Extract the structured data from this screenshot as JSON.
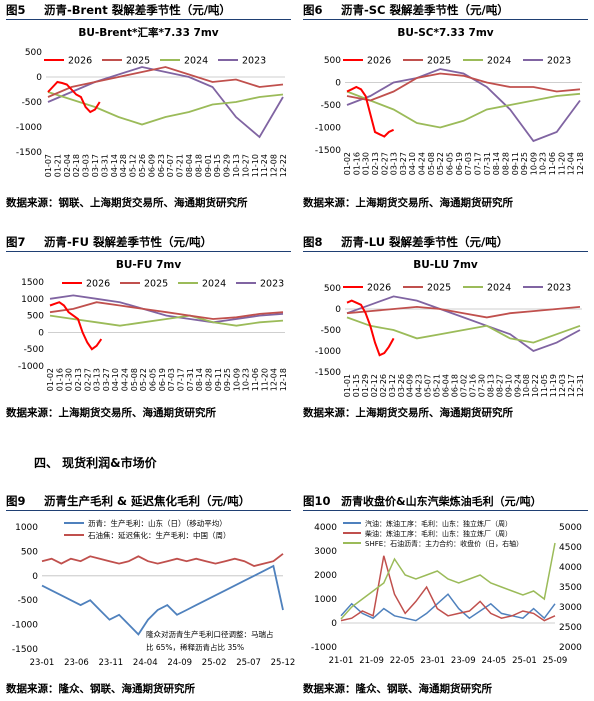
{
  "figures": [
    {
      "num": "图5",
      "title": "沥青-Brent 裂解差季节性（元/吨）"
    },
    {
      "num": "图6",
      "title": "沥青-SC 裂解差季节性（元/吨）"
    },
    {
      "num": "图7",
      "title": "沥青-FU 裂解差季节性（元/吨）"
    },
    {
      "num": "图8",
      "title": "沥青-LU 裂解差季节性（元/吨）"
    },
    {
      "num": "图9",
      "title": "沥青生产毛利 & 延迟焦化毛利（元/吨）"
    },
    {
      "num": "图10",
      "title": "沥青收盘价&山东汽柴炼油毛利（元/吨）"
    }
  ],
  "sources": {
    "s5": "数据来源：钢联、上海期货交易所、海通期货研究所",
    "s6": "数据来源：上海期货交易所、海通期货研究所",
    "s7": "数据来源：上海期货交易所、海通期货研究所",
    "s9": "数据来源：隆众、钢联、海通期货研究所",
    "s10": "数据来源：隆众、钢联、海通期货研究所"
  },
  "section_heading": "四、    现货利润&市场价",
  "colors": {
    "s2026": "#ff0000",
    "s2025": "#c0504d",
    "s2024": "#9bbb59",
    "s2023": "#8064a2",
    "blue": "#4f81bd",
    "red": "#c0504d",
    "green": "#9bbb59"
  },
  "chart_data": [
    {
      "id": "fig5",
      "type": "line",
      "title": "BU-Brent*汇率*7.33 7mv",
      "ylim": [
        -1500,
        500
      ],
      "yticks": [
        "500",
        "0",
        "-500",
        "-1000",
        "-1500"
      ],
      "xticks": [
        "01-07",
        "01-21",
        "02-04",
        "02-18",
        "03-03",
        "03-17",
        "03-31",
        "04-14",
        "04-28",
        "05-12",
        "05-26",
        "06-09",
        "06-23",
        "07-07",
        "07-21",
        "08-04",
        "08-18",
        "09-01",
        "09-15",
        "09-29",
        "10-13",
        "10-27",
        "11-10",
        "11-24",
        "12-08",
        "12-22"
      ],
      "x_tick_labels_printed": [
        "01-07",
        "01-21",
        "02-04",
        "02-18",
        "03-03",
        "03-17",
        "03-31",
        "04-14",
        "04-28",
        "05-12",
        "05-26",
        "06-09",
        "06-23",
        "07-07",
        "07-21",
        "08-04",
        "08-18",
        "09-01",
        "09-15",
        "09-29",
        "10-13",
        "10-27",
        "11-10",
        "11-24",
        "12-08",
        "12-22"
      ],
      "legend": [
        "2026",
        "2025",
        "2024",
        "2023"
      ],
      "series": [
        {
          "name": "2026",
          "x": [
            0,
            1,
            2,
            3,
            4,
            5,
            6,
            7,
            8,
            9,
            10,
            11
          ],
          "values": [
            -300,
            -200,
            -100,
            -120,
            -150,
            -250,
            -350,
            -400,
            -600,
            -700,
            -650,
            -500
          ]
        },
        {
          "name": "2025",
          "x": [
            0,
            5,
            10,
            15,
            20,
            25,
            30,
            35,
            40,
            45,
            50
          ],
          "values": [
            -400,
            -200,
            -100,
            0,
            100,
            200,
            50,
            -100,
            -50,
            -200,
            -150
          ]
        },
        {
          "name": "2024",
          "x": [
            0,
            5,
            10,
            15,
            20,
            25,
            30,
            35,
            40,
            45,
            50
          ],
          "values": [
            -300,
            -450,
            -600,
            -800,
            -950,
            -800,
            -700,
            -550,
            -500,
            -400,
            -350
          ]
        },
        {
          "name": "2023",
          "x": [
            0,
            5,
            10,
            15,
            20,
            25,
            30,
            35,
            40,
            45,
            50
          ],
          "values": [
            -500,
            -300,
            -100,
            50,
            200,
            100,
            0,
            -200,
            -800,
            -1200,
            -400
          ]
        }
      ]
    },
    {
      "id": "fig6",
      "type": "line",
      "title": "BU-SC*7.33 7mv",
      "ylim": [
        -1500,
        500
      ],
      "yticks": [
        "500",
        "0",
        "-500",
        "-1000",
        "-1500"
      ],
      "xticks": [
        "01-02",
        "01-16",
        "01-30",
        "02-13",
        "02-27",
        "03-13",
        "03-27",
        "04-10",
        "04-24",
        "05-08",
        "05-22",
        "06-05",
        "06-19",
        "07-03",
        "07-17",
        "07-31",
        "08-14",
        "08-28",
        "09-11",
        "09-25",
        "10-09",
        "10-23",
        "11-06",
        "11-20",
        "12-04",
        "12-18"
      ],
      "legend": [
        "2026",
        "2025",
        "2024",
        "2023"
      ],
      "series": [
        {
          "name": "2026",
          "x": [
            0,
            1,
            2,
            3,
            4,
            5,
            6,
            7,
            8,
            9,
            10
          ],
          "values": [
            -200,
            -150,
            -100,
            -150,
            -300,
            -700,
            -1100,
            -1150,
            -1200,
            -1100,
            -1050
          ]
        },
        {
          "name": "2025",
          "x": [
            0,
            5,
            10,
            15,
            20,
            25,
            30,
            35,
            40,
            45,
            50
          ],
          "values": [
            -300,
            -400,
            -200,
            100,
            200,
            150,
            0,
            -100,
            -100,
            -200,
            -150
          ]
        },
        {
          "name": "2024",
          "x": [
            0,
            5,
            10,
            15,
            20,
            25,
            30,
            35,
            40,
            45,
            50
          ],
          "values": [
            -200,
            -400,
            -600,
            -900,
            -1000,
            -850,
            -600,
            -500,
            -400,
            -300,
            -250
          ]
        },
        {
          "name": "2023",
          "x": [
            0,
            5,
            10,
            15,
            20,
            25,
            30,
            35,
            40,
            45,
            50
          ],
          "values": [
            -500,
            -300,
            0,
            100,
            300,
            200,
            -100,
            -600,
            -1300,
            -1100,
            -400
          ]
        }
      ]
    },
    {
      "id": "fig7",
      "type": "line",
      "title": "BU-FU 7mv",
      "ylim": [
        -1000,
        1500
      ],
      "yticks": [
        "1500",
        "1000",
        "500",
        "0",
        "-500",
        "-1000"
      ],
      "xticks": [
        "01-02",
        "01-16",
        "01-30",
        "02-13",
        "02-27",
        "03-13",
        "03-27",
        "04-10",
        "04-24",
        "05-08",
        "05-22",
        "06-05",
        "06-19",
        "07-03",
        "07-17",
        "07-31",
        "08-14",
        "08-28",
        "09-11",
        "09-25",
        "10-09",
        "10-23",
        "11-06",
        "11-20",
        "12-04",
        "12-18"
      ],
      "legend": [
        "2026",
        "2025",
        "2024",
        "2023"
      ],
      "series": [
        {
          "name": "2026",
          "x": [
            0,
            1,
            2,
            3,
            4,
            5,
            6,
            7,
            8,
            9,
            10,
            11
          ],
          "values": [
            800,
            850,
            900,
            800,
            600,
            500,
            400,
            0,
            -300,
            -500,
            -400,
            -200
          ]
        },
        {
          "name": "2025",
          "x": [
            0,
            5,
            10,
            15,
            20,
            25,
            30,
            35,
            40,
            45,
            50
          ],
          "values": [
            600,
            700,
            900,
            800,
            700,
            600,
            500,
            400,
            450,
            550,
            600
          ]
        },
        {
          "name": "2024",
          "x": [
            0,
            5,
            10,
            15,
            20,
            25,
            30,
            35,
            40,
            45,
            50
          ],
          "values": [
            500,
            400,
            300,
            200,
            300,
            400,
            500,
            300,
            200,
            300,
            350
          ]
        },
        {
          "name": "2023",
          "x": [
            0,
            5,
            10,
            15,
            20,
            25,
            30,
            35,
            40,
            45,
            50
          ],
          "values": [
            1000,
            1100,
            1000,
            900,
            700,
            500,
            400,
            300,
            400,
            500,
            550
          ]
        }
      ]
    },
    {
      "id": "fig8",
      "type": "line",
      "title": "BU-LU 7mv",
      "ylim": [
        -1500,
        500
      ],
      "yticks": [
        "500",
        "0",
        "-500",
        "-1000",
        "-1500"
      ],
      "xticks": [
        "01-01",
        "01-15",
        "01-29",
        "02-12",
        "02-26",
        "03-12",
        "03-26",
        "04-09",
        "04-23",
        "05-07",
        "05-21",
        "06-04",
        "06-18",
        "07-02",
        "07-16",
        "07-30",
        "08-13",
        "08-27",
        "09-10",
        "09-24",
        "10-08",
        "10-22",
        "11-05",
        "11-19",
        "12-03",
        "12-17",
        "12-31"
      ],
      "legend": [
        "2026",
        "2025",
        "2024",
        "2023"
      ],
      "series": [
        {
          "name": "2026",
          "x": [
            0,
            1,
            2,
            3,
            4,
            5,
            6,
            7,
            8,
            9,
            10
          ],
          "values": [
            150,
            200,
            150,
            100,
            -100,
            -400,
            -800,
            -1100,
            -1050,
            -900,
            -700
          ]
        },
        {
          "name": "2025",
          "x": [
            0,
            5,
            10,
            15,
            20,
            25,
            30,
            35,
            40,
            45,
            50
          ],
          "values": [
            -100,
            -50,
            0,
            50,
            0,
            -100,
            -200,
            -100,
            -50,
            0,
            50
          ]
        },
        {
          "name": "2024",
          "x": [
            0,
            5,
            10,
            15,
            20,
            25,
            30,
            35,
            40,
            45,
            50
          ],
          "values": [
            -200,
            -400,
            -500,
            -700,
            -600,
            -500,
            -400,
            -700,
            -800,
            -600,
            -400
          ]
        },
        {
          "name": "2023",
          "x": [
            0,
            5,
            10,
            15,
            20,
            25,
            30,
            35,
            40,
            45,
            50
          ],
          "values": [
            -100,
            100,
            300,
            200,
            0,
            -200,
            -400,
            -600,
            -1000,
            -800,
            -500
          ]
        }
      ]
    },
    {
      "id": "fig9",
      "type": "line",
      "ylim": [
        -1500,
        1000
      ],
      "yticks": [
        "1000",
        "500",
        "0",
        "-500",
        "-1000",
        "-1500"
      ],
      "xticks": [
        "23-01",
        "23-06",
        "23-11",
        "24-04",
        "24-09",
        "25-02",
        "25-07",
        "25-12"
      ],
      "legend": [
        "沥青：生产毛利：山东（日）（移动平均）",
        "石油焦：延迟焦化：生产毛利：中国（周）"
      ],
      "annotation": "隆众对沥青生产毛利口径调整：马瑞占比 65%，稀释沥青占比 35%",
      "series": [
        {
          "name": "沥青：生产毛利：山东（日）（移动平均）",
          "x": [
            0,
            4,
            8,
            12,
            16,
            20,
            24,
            28,
            32,
            36,
            40,
            44,
            48,
            52,
            56,
            60,
            64,
            68,
            72,
            76,
            80,
            84,
            88,
            92,
            96,
            100
          ],
          "values": [
            -200,
            -300,
            -400,
            -500,
            -600,
            -500,
            -700,
            -900,
            -800,
            -1000,
            -1200,
            -900,
            -700,
            -600,
            -800,
            -700,
            -600,
            -500,
            -400,
            -300,
            -200,
            -100,
            0,
            100,
            200,
            -700
          ]
        },
        {
          "name": "石油焦：延迟焦化：生产毛利：中国（周）",
          "x": [
            0,
            4,
            8,
            12,
            16,
            20,
            24,
            28,
            32,
            36,
            40,
            44,
            48,
            52,
            56,
            60,
            64,
            68,
            72,
            76,
            80,
            84,
            88,
            92,
            96,
            100
          ],
          "values": [
            300,
            350,
            250,
            350,
            300,
            400,
            350,
            300,
            250,
            300,
            400,
            300,
            250,
            300,
            350,
            300,
            350,
            300,
            250,
            300,
            350,
            300,
            200,
            250,
            300,
            450
          ]
        }
      ]
    },
    {
      "id": "fig10",
      "type": "line",
      "ylim": [
        -1000,
        4000
      ],
      "yticks": [
        "4000",
        "3000",
        "2000",
        "1000",
        "0",
        "-1000"
      ],
      "y2lim": [
        2000,
        5000
      ],
      "y2ticks": [
        "5000",
        "4500",
        "4000",
        "3500",
        "3000",
        "2500",
        "2000"
      ],
      "xticks": [
        "21-01",
        "21-09",
        "22-05",
        "23-01",
        "23-09",
        "24-05",
        "25-01",
        "25-09"
      ],
      "legend": [
        "汽油：炼油工序：毛利：山东：独立炼厂（周）",
        "柴油：炼油工序：毛利：山东：独立炼厂（周）",
        "SHFE：石油沥青：主力合约：收盘价（日，右轴）"
      ],
      "series": [
        {
          "name": "汽油：炼油工序：毛利：山东：独立炼厂（周）",
          "x": [
            0,
            5,
            10,
            15,
            20,
            25,
            30,
            35,
            40,
            45,
            50,
            55,
            60,
            65,
            70,
            75,
            80,
            85,
            90,
            95,
            100
          ],
          "values": [
            300,
            800,
            400,
            200,
            600,
            300,
            200,
            100,
            400,
            800,
            1200,
            600,
            200,
            500,
            800,
            400,
            300,
            200,
            600,
            200,
            800
          ]
        },
        {
          "name": "柴油：炼油工序：毛利：山东：独立炼厂（周）",
          "x": [
            0,
            5,
            10,
            15,
            20,
            25,
            30,
            35,
            40,
            45,
            50,
            55,
            60,
            65,
            70,
            75,
            80,
            85,
            90,
            95,
            100
          ],
          "values": [
            100,
            200,
            500,
            300,
            2800,
            1200,
            400,
            900,
            1500,
            600,
            300,
            400,
            500,
            900,
            400,
            200,
            300,
            500,
            400,
            100,
            300
          ]
        },
        {
          "name": "SHFE：石油沥青：主力合约：收盘价（日，右轴）",
          "x": [
            0,
            5,
            10,
            15,
            20,
            25,
            30,
            35,
            40,
            45,
            50,
            55,
            60,
            65,
            70,
            75,
            80,
            85,
            90,
            95,
            100
          ],
          "values": [
            2700,
            3000,
            3200,
            3400,
            3600,
            4200,
            3800,
            3700,
            3800,
            3900,
            3700,
            3600,
            3700,
            3800,
            3600,
            3500,
            3400,
            3300,
            3400,
            3200,
            4600
          ]
        }
      ]
    }
  ]
}
